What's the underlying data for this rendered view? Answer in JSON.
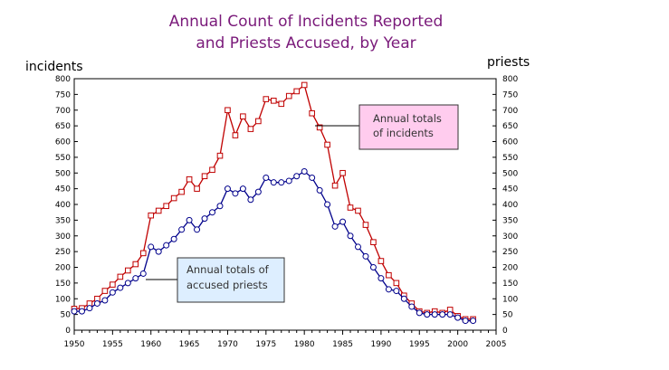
{
  "chart_data": {
    "type": "line",
    "title_lines": [
      "Annual Count of Incidents Reported",
      "and Priests Accused, by Year"
    ],
    "ylabel_left": "incidents",
    "ylabel_right": "priests",
    "xlim": [
      1950,
      2005
    ],
    "ylim": [
      0,
      800
    ],
    "x_ticks": [
      1950,
      1955,
      1960,
      1965,
      1970,
      1975,
      1980,
      1985,
      1990,
      1995,
      2000,
      2005
    ],
    "y_ticks": [
      0,
      50,
      100,
      150,
      200,
      250,
      300,
      350,
      400,
      450,
      500,
      550,
      600,
      650,
      700,
      750,
      800
    ],
    "x": [
      1950,
      1951,
      1952,
      1953,
      1954,
      1955,
      1956,
      1957,
      1958,
      1959,
      1960,
      1961,
      1962,
      1963,
      1964,
      1965,
      1966,
      1967,
      1968,
      1969,
      1970,
      1971,
      1972,
      1973,
      1974,
      1975,
      1976,
      1977,
      1978,
      1979,
      1980,
      1981,
      1982,
      1983,
      1984,
      1985,
      1986,
      1987,
      1988,
      1989,
      1990,
      1991,
      1992,
      1993,
      1994,
      1995,
      1996,
      1997,
      1998,
      1999,
      2000,
      2001,
      2002
    ],
    "series": [
      {
        "name": "Annual totals of incidents",
        "color": "#c00000",
        "values": [
          68,
          70,
          85,
          100,
          125,
          145,
          170,
          190,
          210,
          245,
          365,
          380,
          395,
          420,
          440,
          480,
          450,
          490,
          510,
          555,
          700,
          620,
          680,
          640,
          665,
          735,
          730,
          720,
          745,
          760,
          780,
          690,
          645,
          590,
          460,
          500,
          390,
          380,
          335,
          280,
          220,
          175,
          150,
          110,
          85,
          60,
          55,
          60,
          55,
          65,
          45,
          35,
          35
        ]
      },
      {
        "name": "Annual totals of accused priests",
        "color": "#00008b",
        "values": [
          60,
          60,
          70,
          85,
          95,
          120,
          135,
          150,
          165,
          180,
          265,
          250,
          270,
          290,
          320,
          350,
          320,
          355,
          375,
          395,
          450,
          435,
          450,
          415,
          440,
          485,
          470,
          470,
          475,
          490,
          505,
          485,
          445,
          400,
          330,
          345,
          300,
          265,
          235,
          200,
          165,
          130,
          125,
          100,
          75,
          55,
          50,
          50,
          50,
          50,
          40,
          30,
          30
        ]
      }
    ],
    "annotations": [
      {
        "lines": [
          "Annual totals",
          "of incidents"
        ],
        "fill": "#ffccee",
        "points_to_series": "Annual totals of incidents"
      },
      {
        "lines": [
          "Annual totals of",
          "accused priests"
        ],
        "fill": "#ddeeff",
        "points_to_series": "Annual totals of accused priests"
      }
    ]
  }
}
